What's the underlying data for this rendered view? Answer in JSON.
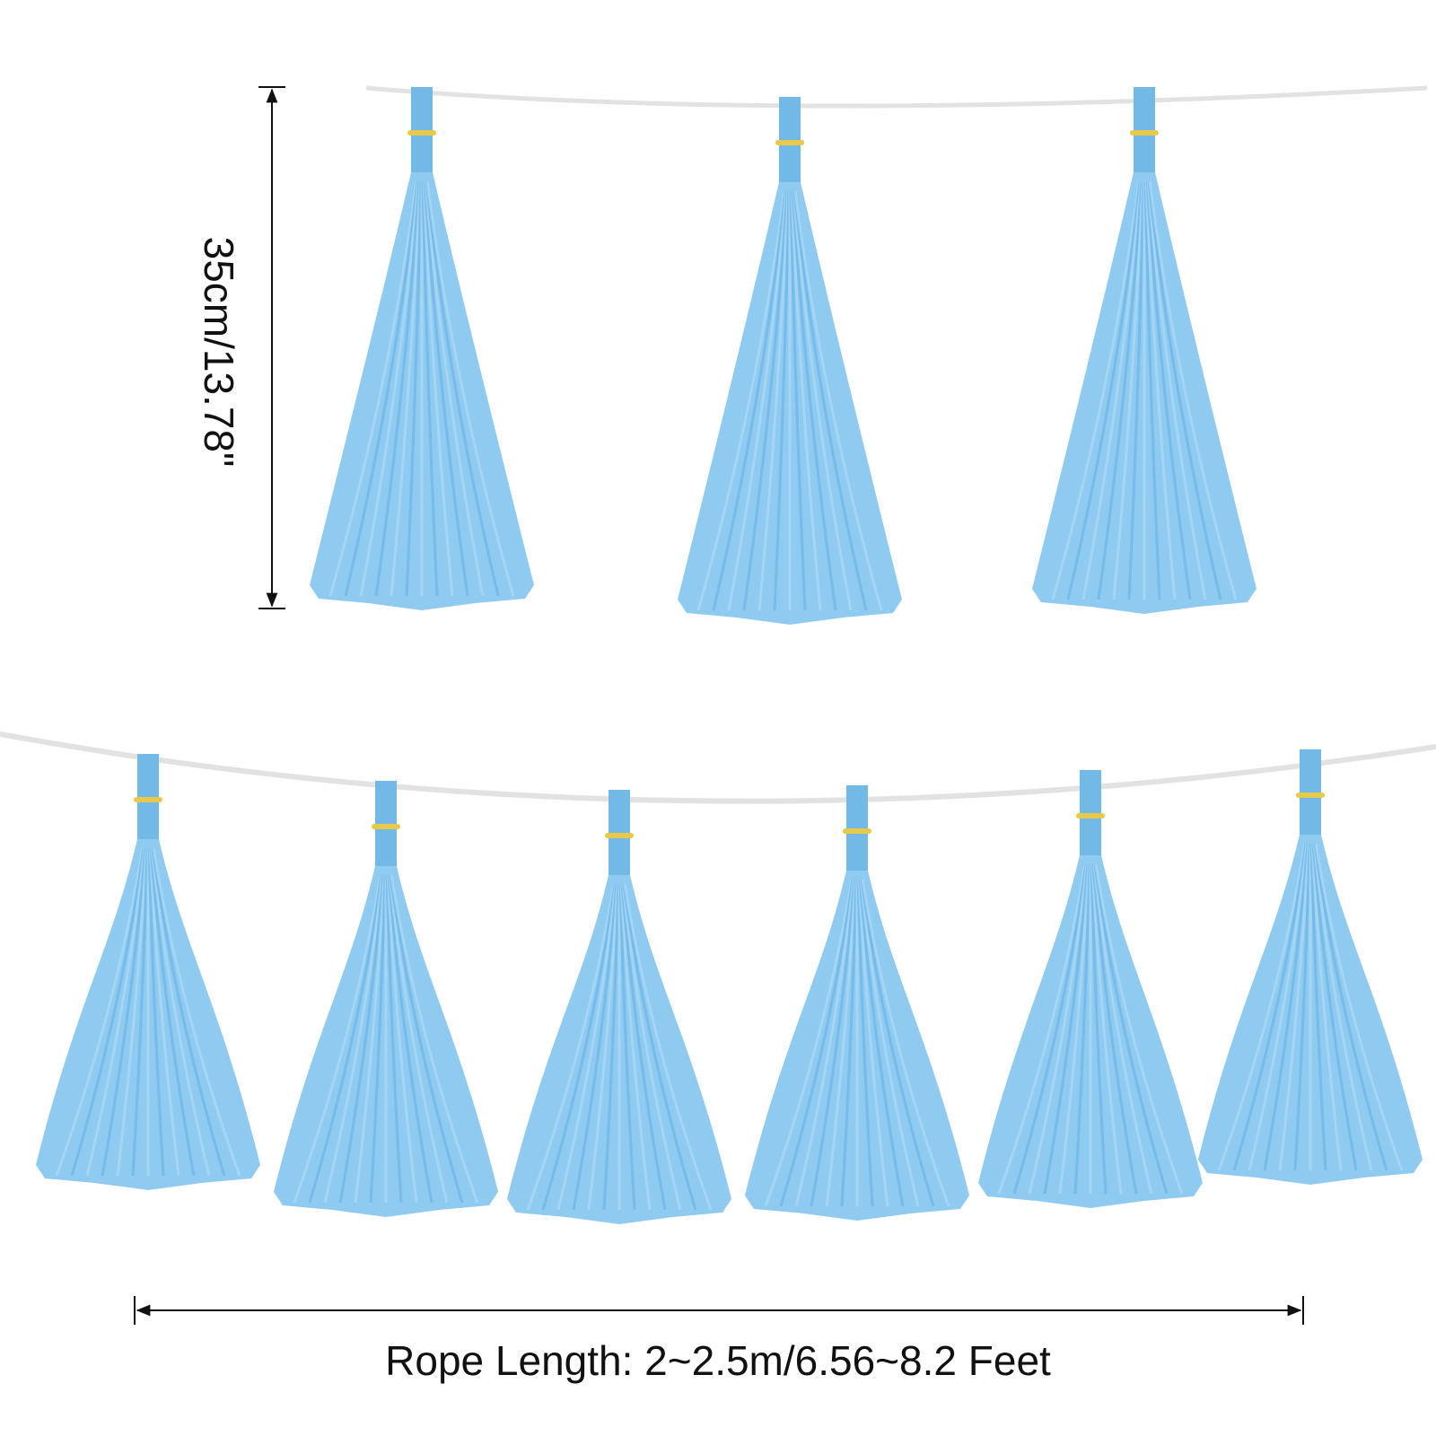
{
  "height_label": "35cm/13.78\"",
  "length_label": "Rope Length: 2~2.5m/6.56~8.2 Feet"
}
